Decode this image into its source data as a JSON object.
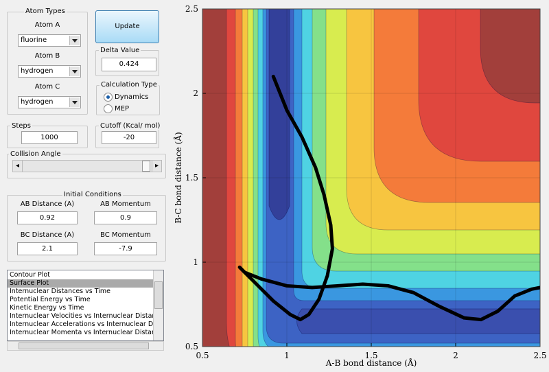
{
  "atom_types": {
    "title": "Atom Types",
    "atoms": [
      {
        "label": "Atom A",
        "value": "fluorine"
      },
      {
        "label": "Atom B",
        "value": "hydrogen"
      },
      {
        "label": "Atom C",
        "value": "hydrogen"
      }
    ]
  },
  "update_button": "Update",
  "delta_value": {
    "label": "Delta Value",
    "value": 0.424
  },
  "calculation_type": {
    "title": "Calculation Type",
    "options": [
      "Dynamics",
      "MEP"
    ],
    "selected": 0
  },
  "steps": {
    "label": "Steps",
    "value": 1000
  },
  "cutoff": {
    "label": "Cutoff (Kcal/ mol)",
    "value": -20
  },
  "collision_angle": {
    "label": "Collision Angle"
  },
  "initial_conditions": {
    "title": "Initial Conditions",
    "fields": [
      {
        "label": "AB Distance (A)",
        "value": 0.92
      },
      {
        "label": "AB Momentum",
        "value": 0.9
      },
      {
        "label": "BC Distance (A)",
        "value": 2.1
      },
      {
        "label": "BC Momentum",
        "value": -7.9
      }
    ]
  },
  "plot_list": {
    "items": [
      "Contour Plot",
      "Surface Plot",
      "Internuclear Distances vs Time",
      "Potential Energy vs Time",
      "Kinetic Energy vs Time",
      "Internuclear Velocities vs Internuclear Distance",
      "Internuclear Accelerations vs Internuclear Dista",
      "Internuclear Momenta vs Internuclear Distance"
    ],
    "selected": 1
  },
  "chart_data": {
    "type": "line",
    "xlabel": "A-B bond distance (Å)",
    "ylabel": "B-C bond distance (Å)",
    "x": [
      0.92,
      1.0,
      1.09,
      1.17,
      1.22,
      1.26,
      1.27,
      1.24,
      1.19,
      1.13,
      1.08,
      1.02,
      0.92,
      0.82,
      0.74,
      0.72,
      0.75,
      0.85,
      1.0,
      1.15,
      1.3,
      1.45,
      1.6,
      1.75,
      1.9,
      2.05,
      2.15,
      2.25,
      2.35,
      2.45,
      2.5
    ],
    "values": [
      2.1,
      1.9,
      1.74,
      1.56,
      1.4,
      1.22,
      1.08,
      0.92,
      0.78,
      0.69,
      0.66,
      0.69,
      0.77,
      0.87,
      0.95,
      0.97,
      0.94,
      0.9,
      0.86,
      0.85,
      0.86,
      0.87,
      0.86,
      0.82,
      0.74,
      0.67,
      0.66,
      0.71,
      0.8,
      0.84,
      0.85
    ],
    "color": "#000000",
    "xlim": [
      0.5,
      2.5
    ],
    "ylim": [
      0.5,
      2.5
    ],
    "xticks": [
      0.5,
      1,
      1.5,
      2,
      2.5
    ],
    "yticks": [
      0.5,
      1,
      1.5,
      2,
      2.5
    ],
    "grid": true
  }
}
